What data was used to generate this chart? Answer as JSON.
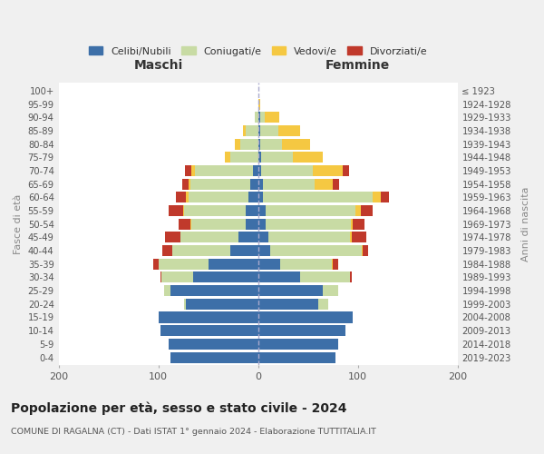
{
  "age_groups": [
    "100+",
    "95-99",
    "90-94",
    "85-89",
    "80-84",
    "75-79",
    "70-74",
    "65-69",
    "60-64",
    "55-59",
    "50-54",
    "45-49",
    "40-44",
    "35-39",
    "30-34",
    "25-29",
    "20-24",
    "15-19",
    "10-14",
    "5-9",
    "0-4"
  ],
  "birth_years": [
    "≤ 1923",
    "1924-1928",
    "1929-1933",
    "1934-1938",
    "1939-1943",
    "1944-1948",
    "1949-1953",
    "1954-1958",
    "1959-1963",
    "1964-1968",
    "1969-1973",
    "1974-1978",
    "1979-1983",
    "1984-1988",
    "1989-1993",
    "1994-1998",
    "1999-2003",
    "2004-2008",
    "2009-2013",
    "2014-2018",
    "2019-2023"
  ],
  "maschi": {
    "celibe": [
      0,
      0,
      0,
      0,
      0,
      0,
      5,
      8,
      10,
      12,
      12,
      20,
      28,
      50,
      65,
      88,
      72,
      100,
      98,
      90,
      88
    ],
    "coniugato": [
      0,
      0,
      3,
      12,
      18,
      28,
      58,
      60,
      60,
      62,
      55,
      58,
      58,
      50,
      32,
      6,
      2,
      0,
      0,
      0,
      0
    ],
    "vedovo": [
      0,
      0,
      0,
      3,
      5,
      5,
      4,
      2,
      2,
      1,
      1,
      0,
      0,
      0,
      0,
      0,
      0,
      0,
      0,
      0,
      0
    ],
    "divorziato": [
      0,
      0,
      0,
      0,
      0,
      0,
      6,
      6,
      10,
      15,
      12,
      15,
      10,
      5,
      1,
      0,
      0,
      0,
      0,
      0,
      0
    ]
  },
  "femmine": {
    "nubile": [
      0,
      0,
      2,
      2,
      2,
      3,
      3,
      5,
      5,
      8,
      8,
      10,
      12,
      22,
      42,
      65,
      60,
      95,
      88,
      80,
      78
    ],
    "coniugata": [
      0,
      0,
      5,
      18,
      22,
      32,
      52,
      52,
      110,
      90,
      85,
      82,
      92,
      52,
      50,
      15,
      10,
      0,
      0,
      0,
      0
    ],
    "vedova": [
      0,
      2,
      14,
      22,
      28,
      30,
      30,
      18,
      8,
      5,
      2,
      2,
      1,
      1,
      0,
      0,
      0,
      0,
      0,
      0,
      0
    ],
    "divorziata": [
      0,
      0,
      0,
      0,
      0,
      0,
      6,
      6,
      8,
      12,
      12,
      15,
      5,
      5,
      2,
      0,
      0,
      0,
      0,
      0,
      0
    ]
  },
  "colors": {
    "celibe": "#3d6fa8",
    "coniugato": "#c8dba4",
    "vedovo": "#f5c842",
    "divorziato": "#c0392b"
  },
  "title": "Popolazione per età, sesso e stato civile - 2024",
  "subtitle": "COMUNE DI RAGALNA (CT) - Dati ISTAT 1° gennaio 2024 - Elaborazione TUTTITALIA.IT",
  "label_maschi": "Maschi",
  "label_femmine": "Femmine",
  "ylabel_left": "Fasce di età",
  "ylabel_right": "Anni di nascita",
  "legend_labels": [
    "Celibi/Nubili",
    "Coniugati/e",
    "Vedovi/e",
    "Divorziati/e"
  ],
  "xlim": 200,
  "background_color": "#f0f0f0",
  "plot_bg": "#ffffff"
}
